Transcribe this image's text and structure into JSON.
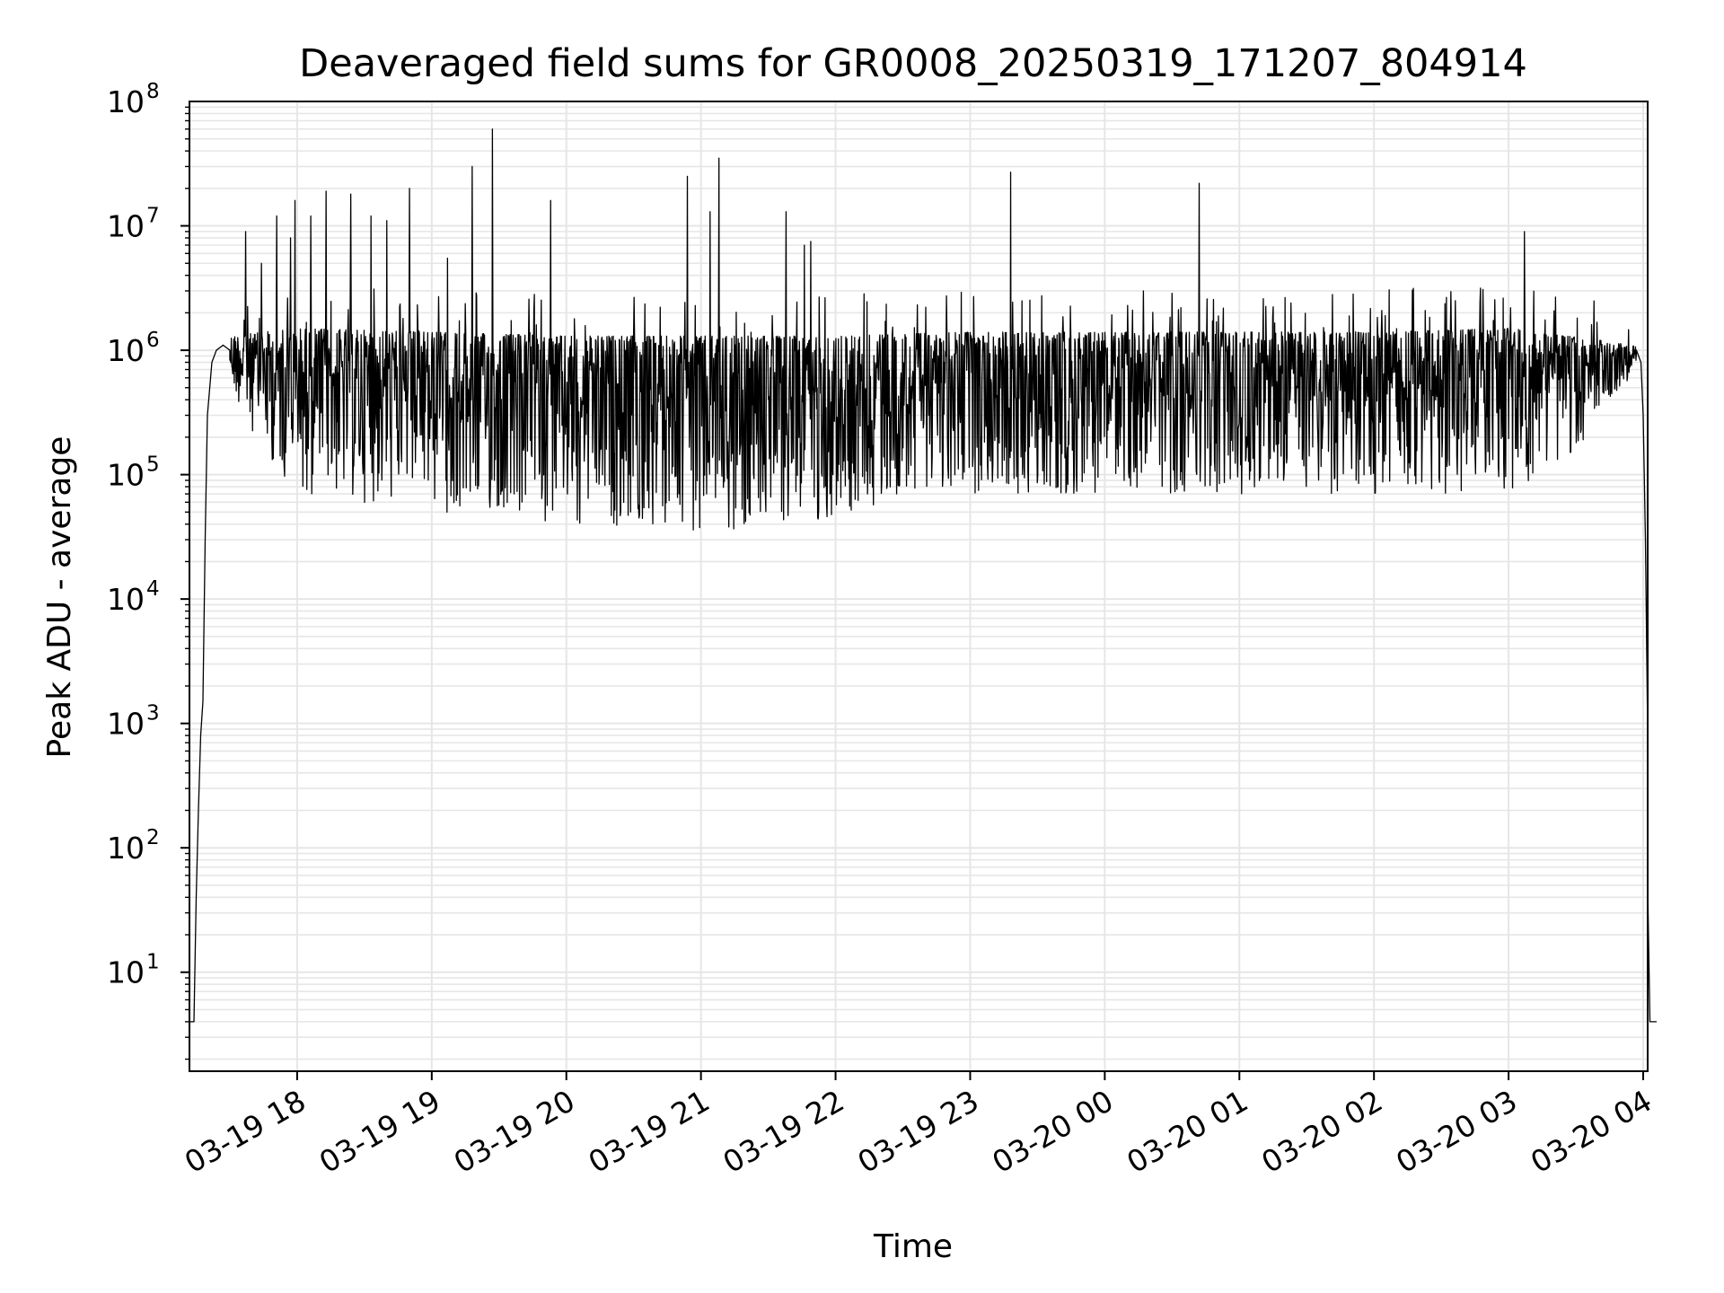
{
  "chart_data": {
    "type": "line",
    "title": "Deaveraged field sums for GR0008_20250319_171207_804914",
    "xlabel": "Time",
    "ylabel": "Peak ADU - average",
    "y_scale": "log",
    "ylim": [
      1.6,
      100000000
    ],
    "xlim": [
      "2025-03-19 17:12",
      "2025-03-20 04:02"
    ],
    "grid": true,
    "line_color": "#000000",
    "grid_color": "#e6e6e6",
    "x_ticks": [
      {
        "t": "2025-03-19 18:00",
        "label": "03-19 18"
      },
      {
        "t": "2025-03-19 19:00",
        "label": "03-19 19"
      },
      {
        "t": "2025-03-19 20:00",
        "label": "03-19 20"
      },
      {
        "t": "2025-03-19 21:00",
        "label": "03-19 21"
      },
      {
        "t": "2025-03-19 22:00",
        "label": "03-19 22"
      },
      {
        "t": "2025-03-19 23:00",
        "label": "03-19 23"
      },
      {
        "t": "2025-03-20 00:00",
        "label": "03-20 00"
      },
      {
        "t": "2025-03-20 01:00",
        "label": "03-20 01"
      },
      {
        "t": "2025-03-20 02:00",
        "label": "03-20 02"
      },
      {
        "t": "2025-03-20 03:00",
        "label": "03-20 03"
      },
      {
        "t": "2025-03-20 04:00",
        "label": "03-20 04"
      }
    ],
    "y_ticks": [
      {
        "value": 10,
        "base": "10",
        "exp": "1"
      },
      {
        "value": 100,
        "base": "10",
        "exp": "2"
      },
      {
        "value": 1000,
        "base": "10",
        "exp": "3"
      },
      {
        "value": 10000,
        "base": "10",
        "exp": "4"
      },
      {
        "value": 100000,
        "base": "10",
        "exp": "5"
      },
      {
        "value": 1000000,
        "base": "10",
        "exp": "6"
      },
      {
        "value": 10000000,
        "base": "10",
        "exp": "7"
      },
      {
        "value": 100000000,
        "base": "10",
        "exp": "8"
      }
    ],
    "series": [
      {
        "points": [
          [
            "2025-03-19 17:12",
            4
          ],
          [
            "2025-03-19 17:14",
            4
          ],
          [
            "2025-03-19 17:15",
            40
          ],
          [
            "2025-03-19 17:16",
            200
          ],
          [
            "2025-03-19 17:17",
            800
          ],
          [
            "2025-03-19 17:18",
            1500
          ],
          [
            "2025-03-19 17:19",
            30000
          ],
          [
            "2025-03-19 17:20",
            300000
          ],
          [
            "2025-03-19 17:22",
            800000
          ],
          [
            "2025-03-19 17:24",
            1000000
          ],
          [
            "2025-03-19 17:27",
            1100000
          ],
          [
            "2025-03-19 17:30",
            1000000
          ]
        ],
        "band": {
          "start": "2025-03-19 17:30",
          "end": "2025-03-20 03:57",
          "upper": [
            [
              "2025-03-19 17:30",
              1300000
            ],
            [
              "2025-03-19 18:00",
              1500000
            ],
            [
              "2025-03-19 19:00",
              1400000
            ],
            [
              "2025-03-19 20:00",
              1300000
            ],
            [
              "2025-03-19 21:00",
              1300000
            ],
            [
              "2025-03-19 22:00",
              1300000
            ],
            [
              "2025-03-19 23:00",
              1400000
            ],
            [
              "2025-03-20 00:00",
              1400000
            ],
            [
              "2025-03-20 01:00",
              1400000
            ],
            [
              "2025-03-20 02:00",
              1400000
            ],
            [
              "2025-03-20 03:00",
              1500000
            ],
            [
              "2025-03-20 03:57",
              1100000
            ]
          ],
          "lower": [
            [
              "2025-03-19 17:30",
              500000
            ],
            [
              "2025-03-19 17:45",
              150000
            ],
            [
              "2025-03-19 18:00",
              70000
            ],
            [
              "2025-03-19 19:00",
              50000
            ],
            [
              "2025-03-19 20:00",
              40000
            ],
            [
              "2025-03-19 21:00",
              35000
            ],
            [
              "2025-03-19 22:00",
              40000
            ],
            [
              "2025-03-19 22:30",
              70000
            ],
            [
              "2025-03-19 23:00",
              70000
            ],
            [
              "2025-03-20 00:00",
              70000
            ],
            [
              "2025-03-20 01:00",
              70000
            ],
            [
              "2025-03-20 02:00",
              70000
            ],
            [
              "2025-03-20 03:00",
              70000
            ],
            [
              "2025-03-20 03:30",
              150000
            ],
            [
              "2025-03-20 03:57",
              700000
            ]
          ]
        },
        "spikes": [
          [
            "2025-03-19 17:37",
            9000000
          ],
          [
            "2025-03-19 17:44",
            5000000
          ],
          [
            "2025-03-19 17:51",
            12000000
          ],
          [
            "2025-03-19 17:57",
            8000000
          ],
          [
            "2025-03-19 17:59",
            16000000
          ],
          [
            "2025-03-19 18:06",
            12000000
          ],
          [
            "2025-03-19 18:13",
            19000000
          ],
          [
            "2025-03-19 18:24",
            18000000
          ],
          [
            "2025-03-19 18:33",
            12000000
          ],
          [
            "2025-03-19 18:40",
            11000000
          ],
          [
            "2025-03-19 18:50",
            20000000
          ],
          [
            "2025-03-19 19:07",
            5500000
          ],
          [
            "2025-03-19 19:18",
            30000000
          ],
          [
            "2025-03-19 19:27",
            60000000
          ],
          [
            "2025-03-19 19:53",
            16000000
          ],
          [
            "2025-03-19 20:54",
            25000000
          ],
          [
            "2025-03-19 21:04",
            13000000
          ],
          [
            "2025-03-19 21:08",
            35000000
          ],
          [
            "2025-03-19 21:38",
            13000000
          ],
          [
            "2025-03-19 21:46",
            7000000
          ],
          [
            "2025-03-19 21:49",
            7500000
          ],
          [
            "2025-03-19 23:18",
            27000000
          ],
          [
            "2025-03-20 00:42",
            22000000
          ],
          [
            "2025-03-20 03:07",
            9000000
          ]
        ],
        "tail": [
          [
            "2025-03-20 03:57",
            1000000
          ],
          [
            "2025-03-20 03:59",
            800000
          ],
          [
            "2025-03-20 04:00",
            300000
          ],
          [
            "2025-03-20 04:01",
            30000
          ],
          [
            "2025-03-20 04:02",
            800
          ],
          [
            "2025-03-20 04:02",
            50
          ],
          [
            "2025-03-20 04:03",
            4
          ],
          [
            "2025-03-20 04:06",
            4
          ]
        ]
      }
    ]
  }
}
